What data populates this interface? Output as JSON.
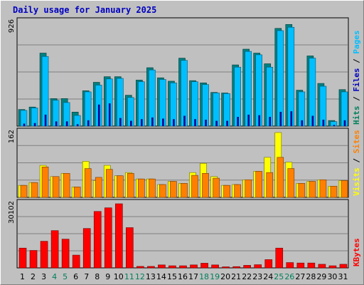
{
  "title": "Daily usage for January 2025",
  "colors": {
    "background": "#c0c0c0",
    "title": "#0000c0",
    "pages": "#008080",
    "files": "#00bfff",
    "hits": "#00c0a0",
    "sites": "#ff8000",
    "visits": "#ffff00",
    "kbytes": "#ff0000",
    "weekend_day_label": "#00805c",
    "weekday_label": "#000000"
  },
  "chart_data": [
    {
      "type": "bar",
      "name": "hits-files-pages",
      "categories": [
        "1",
        "2",
        "3",
        "4",
        "5",
        "6",
        "7",
        "8",
        "9",
        "10",
        "11",
        "12",
        "13",
        "14",
        "15",
        "16",
        "17",
        "18",
        "19",
        "20",
        "21",
        "22",
        "23",
        "24",
        "25",
        "26",
        "27",
        "28",
        "29",
        "30",
        "31"
      ],
      "max_label": "926",
      "ylim": [
        0,
        926
      ],
      "legend": [
        {
          "label": "Pages",
          "color": "#00bfff"
        },
        {
          "label": "Files",
          "color": "#0000c0"
        },
        {
          "label": "Hits",
          "color": "#00805c"
        }
      ],
      "series": [
        {
          "name": "Hits",
          "values": [
            148,
            170,
            650,
            245,
            245,
            125,
            315,
            390,
            440,
            440,
            275,
            410,
            520,
            430,
            400,
            605,
            405,
            385,
            300,
            295,
            545,
            685,
            650,
            555,
            870,
            905,
            320,
            625,
            380,
            50,
            325
          ]
        },
        {
          "name": "Files",
          "values": [
            140,
            162,
            620,
            230,
            210,
            95,
            305,
            365,
            420,
            425,
            255,
            395,
            500,
            415,
            385,
            585,
            395,
            370,
            295,
            290,
            525,
            665,
            635,
            525,
            850,
            880,
            305,
            605,
            355,
            40,
            305
          ]
        },
        {
          "name": "Pages",
          "values": [
            20,
            25,
            100,
            40,
            40,
            15,
            50,
            190,
            200,
            70,
            45,
            60,
            75,
            65,
            60,
            90,
            60,
            55,
            45,
            45,
            80,
            100,
            95,
            80,
            125,
            130,
            50,
            90,
            55,
            8,
            50
          ]
        }
      ]
    },
    {
      "type": "bar",
      "name": "visits-sites",
      "categories": [
        "1",
        "2",
        "3",
        "4",
        "5",
        "6",
        "7",
        "8",
        "9",
        "10",
        "11",
        "12",
        "13",
        "14",
        "15",
        "16",
        "17",
        "18",
        "19",
        "20",
        "21",
        "22",
        "23",
        "24",
        "25",
        "26",
        "27",
        "28",
        "29",
        "30",
        "31"
      ],
      "max_label": "162",
      "ylim": [
        0,
        162
      ],
      "legend": [
        {
          "label": "Sites",
          "color": "#ff8000"
        },
        {
          "label": "Visits",
          "color": "#ffff00"
        }
      ],
      "series": [
        {
          "name": "Visits",
          "values": [
            30,
            37,
            80,
            52,
            60,
            26,
            90,
            42,
            80,
            54,
            62,
            46,
            46,
            32,
            40,
            35,
            62,
            85,
            52,
            30,
            32,
            44,
            65,
            100,
            162,
            88,
            35,
            40,
            44,
            28,
            42
          ]
        },
        {
          "name": "Sites",
          "values": [
            30,
            37,
            76,
            52,
            60,
            26,
            72,
            50,
            70,
            54,
            60,
            46,
            46,
            32,
            40,
            35,
            55,
            60,
            48,
            30,
            32,
            44,
            65,
            62,
            100,
            72,
            35,
            40,
            44,
            28,
            42
          ]
        }
      ]
    },
    {
      "type": "bar",
      "name": "kbytes",
      "categories": [
        "1",
        "2",
        "3",
        "4",
        "5",
        "6",
        "7",
        "8",
        "9",
        "10",
        "11",
        "12",
        "13",
        "14",
        "15",
        "16",
        "17",
        "18",
        "19",
        "20",
        "21",
        "22",
        "23",
        "24",
        "25",
        "26",
        "27",
        "28",
        "29",
        "30",
        "31"
      ],
      "max_label": "30102",
      "ylim": [
        0,
        30102
      ],
      "legend": [
        {
          "label": "KBytes",
          "color": "#ff0000"
        }
      ],
      "series": [
        {
          "name": "KBytes",
          "values": [
            9300,
            8200,
            12500,
            17500,
            13500,
            6000,
            18500,
            26500,
            28200,
            30102,
            18900,
            700,
            700,
            1400,
            1000,
            1000,
            1400,
            2200,
            1400,
            500,
            600,
            1200,
            1500,
            3900,
            9300,
            2500,
            2300,
            2300,
            1700,
            1000,
            1700
          ]
        }
      ]
    }
  ]
}
